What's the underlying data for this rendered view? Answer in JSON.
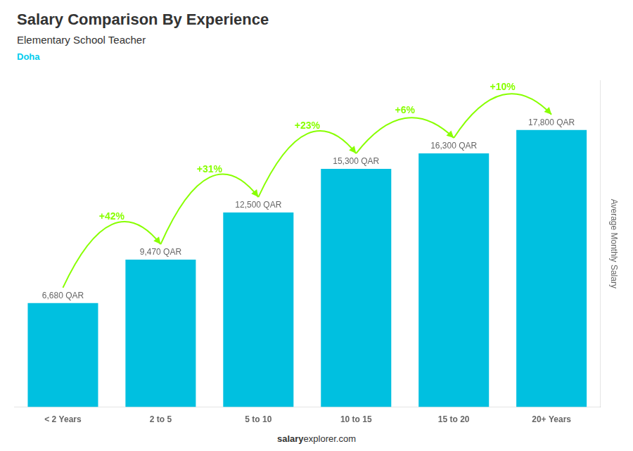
{
  "chart_data": {
    "type": "bar",
    "title": "Salary Comparison By Experience",
    "subtitle": "Elementary School Teacher",
    "city": {
      "text": "Doha",
      "color": "#00ccee"
    },
    "categories": [
      "< 2 Years",
      "2 to 5",
      "5 to 10",
      "10 to 15",
      "15 to 20",
      "20+ Years"
    ],
    "values": [
      6680,
      9470,
      12500,
      15300,
      16300,
      17800
    ],
    "value_labels": [
      "6,680 QAR",
      "9,470 QAR",
      "12,500 QAR",
      "15,300 QAR",
      "16,300 QAR",
      "17,800 QAR"
    ],
    "data_labels": true,
    "color": "#00c0e0",
    "ylabel": "Average Monthly Salary",
    "ylim": [
      0,
      21000
    ],
    "tick_labels": "x",
    "grid": false,
    "annotations": [
      {
        "text": "+42%",
        "color": "#88ff00",
        "between": [
          "< 2 Years",
          "2 to 5"
        ]
      },
      {
        "text": "+31%",
        "color": "#88ff00",
        "between": [
          "2 to 5",
          "5 to 10"
        ]
      },
      {
        "text": "+23%",
        "color": "#88ff00",
        "between": [
          "5 to 10",
          "10 to 15"
        ]
      },
      {
        "text": "+6%",
        "color": "#88ff00",
        "between": [
          "10 to 15",
          "15 to 20"
        ]
      },
      {
        "text": "+10%",
        "color": "#88ff00",
        "between": [
          "15 to 20",
          "20+ Years"
        ]
      }
    ],
    "footer": [
      "salary",
      "explorer.com"
    ]
  }
}
